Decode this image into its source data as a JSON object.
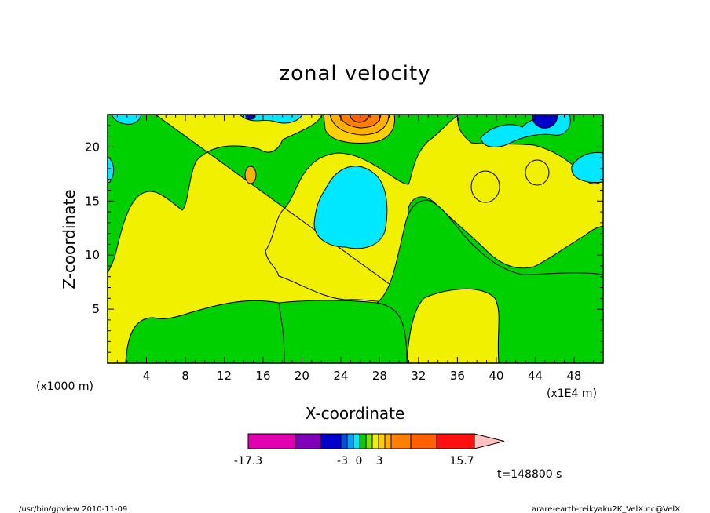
{
  "chart_data": {
    "type": "heatmap",
    "title": "zonal velocity",
    "xlabel": "X-coordinate",
    "ylabel": "Z-coordinate",
    "x_unit_left": "(x1000 m)",
    "x_unit_right": "(x1E4 m)",
    "xlim": [
      0,
      51
    ],
    "ylim": [
      0,
      23
    ],
    "x_ticks": [
      "4",
      "8",
      "12",
      "16",
      "20",
      "24",
      "28",
      "32",
      "36",
      "40",
      "44",
      "48"
    ],
    "y_ticks": [
      "5",
      "10",
      "15",
      "20"
    ],
    "colorbar": {
      "min_label": "-17.3",
      "max_label": "15.7",
      "labels": [
        "-3",
        "0",
        "3"
      ],
      "level_colors": [
        "#e000b0",
        "#8000b8",
        "#0000c8",
        "#0050e0",
        "#00a0ff",
        "#00e8ff",
        "#00d000",
        "#80e000",
        "#f0f000",
        "#ffd000",
        "#ffb000",
        "#ff8000",
        "#ff6000",
        "#ff1010",
        "#ff8080",
        "#ffc0c0"
      ]
    },
    "time_label": "t=148800 s"
  },
  "footer": {
    "left": "/usr/bin/gpview   2010-11-09",
    "right": "arare-earth-reikyaku2K_VelX.nc@VelX"
  }
}
